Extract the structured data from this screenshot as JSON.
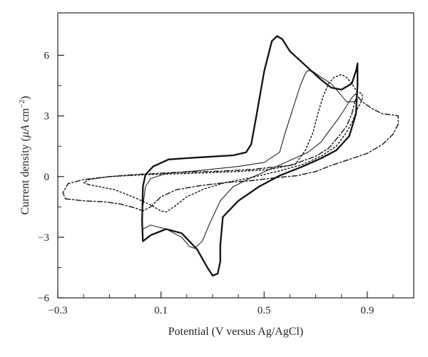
{
  "chart_data": {
    "type": "line",
    "title": "",
    "xlabel": "Potential (V versus Ag/AgCl)",
    "ylabel_parts": [
      "Current density (",
      "μA",
      " cm",
      "−2",
      ")"
    ],
    "xlim": [
      -0.3,
      1.08
    ],
    "ylim": [
      -6,
      8.1
    ],
    "x_ticks": [
      -0.3,
      0.1,
      0.5,
      0.9
    ],
    "x_tick_labels": [
      "−0.3",
      "0.1",
      "0.5",
      "0.9"
    ],
    "x_minor_ticks": [
      -0.2,
      -0.1,
      0,
      0.2,
      0.3,
      0.4,
      0.6,
      0.7,
      0.8,
      1.0
    ],
    "y_ticks": [
      -6,
      -3,
      0,
      3,
      6
    ],
    "y_tick_labels": [
      "−6",
      "−3",
      "0",
      "3",
      "6"
    ],
    "y_minor_ticks": [
      -4.5,
      -1.5,
      1.5,
      4.5
    ],
    "grid": false,
    "series": [
      {
        "style": "solid-thick",
        "color": "#111111",
        "points": [
          [
            0.33,
            -3.4
          ],
          [
            0.34,
            -2.0
          ],
          [
            0.4,
            -1.2
          ],
          [
            0.48,
            -0.5
          ],
          [
            0.56,
            0.05
          ],
          [
            0.65,
            0.5
          ],
          [
            0.72,
            0.9
          ],
          [
            0.78,
            1.3
          ],
          [
            0.83,
            2.0
          ],
          [
            0.856,
            3.1
          ],
          [
            0.862,
            4.5
          ],
          [
            0.862,
            5.6
          ],
          [
            0.858,
            5.3
          ],
          [
            0.84,
            4.6
          ],
          [
            0.8,
            4.3
          ],
          [
            0.76,
            4.4
          ],
          [
            0.72,
            4.8
          ],
          [
            0.66,
            5.5
          ],
          [
            0.6,
            6.2
          ],
          [
            0.57,
            6.8
          ],
          [
            0.55,
            6.95
          ],
          [
            0.53,
            6.7
          ],
          [
            0.5,
            5.2
          ],
          [
            0.47,
            3.0
          ],
          [
            0.45,
            1.6
          ],
          [
            0.43,
            1.2
          ],
          [
            0.38,
            1.05
          ],
          [
            0.25,
            0.95
          ],
          [
            0.13,
            0.85
          ],
          [
            0.07,
            0.5
          ],
          [
            0.04,
            0.1
          ],
          [
            0.03,
            -0.5
          ],
          [
            0.027,
            -2.2
          ],
          [
            0.03,
            -3.2
          ],
          [
            0.06,
            -2.9
          ],
          [
            0.12,
            -2.6
          ],
          [
            0.18,
            -2.8
          ],
          [
            0.24,
            -3.6
          ],
          [
            0.28,
            -4.5
          ],
          [
            0.3,
            -4.9
          ],
          [
            0.32,
            -4.8
          ],
          [
            0.33,
            -4.2
          ],
          [
            0.33,
            -3.4
          ]
        ]
      },
      {
        "style": "solid-thin",
        "color": "#222222",
        "points": [
          [
            0.03,
            -2.6
          ],
          [
            0.06,
            -2.4
          ],
          [
            0.12,
            -2.6
          ],
          [
            0.18,
            -3.0
          ],
          [
            0.21,
            -3.45
          ],
          [
            0.23,
            -3.55
          ],
          [
            0.26,
            -3.2
          ],
          [
            0.29,
            -2.3
          ],
          [
            0.33,
            -1.2
          ],
          [
            0.38,
            -0.5
          ],
          [
            0.45,
            -0.05
          ],
          [
            0.53,
            0.4
          ],
          [
            0.6,
            0.8
          ],
          [
            0.67,
            1.2
          ],
          [
            0.72,
            1.7
          ],
          [
            0.76,
            2.4
          ],
          [
            0.79,
            2.9
          ],
          [
            0.82,
            3.5
          ],
          [
            0.84,
            3.9
          ],
          [
            0.855,
            4.1
          ],
          [
            0.86,
            3.9
          ],
          [
            0.85,
            3.7
          ],
          [
            0.82,
            3.7
          ],
          [
            0.8,
            4.0
          ],
          [
            0.76,
            4.6
          ],
          [
            0.71,
            5.0
          ],
          [
            0.69,
            5.2
          ],
          [
            0.67,
            5.25
          ],
          [
            0.66,
            5.1
          ],
          [
            0.64,
            4.5
          ],
          [
            0.61,
            3.3
          ],
          [
            0.58,
            2.1
          ],
          [
            0.56,
            1.2
          ],
          [
            0.5,
            0.7
          ],
          [
            0.4,
            0.5
          ],
          [
            0.25,
            0.3
          ],
          [
            0.12,
            0.15
          ],
          [
            0.06,
            -0.1
          ],
          [
            0.04,
            -0.5
          ],
          [
            0.03,
            -1.5
          ]
        ]
      },
      {
        "style": "dotted",
        "color": "#111111",
        "points": [
          [
            -0.18,
            -0.4
          ],
          [
            -0.08,
            -0.65
          ],
          [
            0.0,
            -1.05
          ],
          [
            0.06,
            -1.4
          ],
          [
            0.1,
            -1.7
          ],
          [
            0.12,
            -1.75
          ],
          [
            0.15,
            -1.5
          ],
          [
            0.2,
            -1.0
          ],
          [
            0.27,
            -0.6
          ],
          [
            0.35,
            -0.3
          ],
          [
            0.45,
            -0.05
          ],
          [
            0.55,
            0.25
          ],
          [
            0.65,
            0.6
          ],
          [
            0.72,
            1.0
          ],
          [
            0.78,
            1.5
          ],
          [
            0.82,
            2.2
          ],
          [
            0.845,
            2.8
          ],
          [
            0.86,
            3.3
          ],
          [
            0.88,
            3.8
          ],
          [
            0.88,
            4.1
          ],
          [
            0.86,
            4.2
          ],
          [
            0.84,
            4.6
          ],
          [
            0.82,
            4.9
          ],
          [
            0.8,
            5.05
          ],
          [
            0.77,
            4.9
          ],
          [
            0.75,
            4.6
          ],
          [
            0.73,
            4.0
          ],
          [
            0.71,
            3.2
          ],
          [
            0.69,
            2.2
          ],
          [
            0.66,
            1.3
          ],
          [
            0.62,
            0.6
          ],
          [
            0.52,
            0.35
          ],
          [
            0.4,
            0.25
          ],
          [
            0.2,
            0.15
          ],
          [
            0.05,
            0.1
          ],
          [
            -0.1,
            0.0
          ],
          [
            -0.18,
            -0.15
          ],
          [
            -0.2,
            -0.3
          ],
          [
            -0.18,
            -0.4
          ]
        ]
      },
      {
        "style": "dash-dot",
        "color": "#111111",
        "points": [
          [
            -0.27,
            -1.1
          ],
          [
            -0.2,
            -1.2
          ],
          [
            -0.12,
            -1.25
          ],
          [
            -0.06,
            -1.35
          ],
          [
            0.0,
            -1.55
          ],
          [
            0.03,
            -1.7
          ],
          [
            0.06,
            -1.5
          ],
          [
            0.1,
            -1.0
          ],
          [
            0.16,
            -0.65
          ],
          [
            0.25,
            -0.45
          ],
          [
            0.35,
            -0.3
          ],
          [
            0.45,
            -0.2
          ],
          [
            0.55,
            -0.05
          ],
          [
            0.63,
            0.05
          ],
          [
            0.7,
            0.25
          ],
          [
            0.76,
            0.55
          ],
          [
            0.83,
            0.85
          ],
          [
            0.9,
            1.15
          ],
          [
            0.96,
            1.6
          ],
          [
            1.0,
            2.1
          ],
          [
            1.02,
            2.6
          ],
          [
            1.02,
            3.0
          ],
          [
            1.0,
            3.05
          ],
          [
            0.96,
            3.1
          ],
          [
            0.92,
            3.35
          ],
          [
            0.88,
            3.7
          ],
          [
            0.86,
            4.0
          ],
          [
            0.85,
            3.6
          ],
          [
            0.84,
            3.1
          ],
          [
            0.82,
            2.5
          ],
          [
            0.79,
            2.0
          ],
          [
            0.75,
            1.4
          ],
          [
            0.7,
            1.0
          ],
          [
            0.6,
            0.55
          ],
          [
            0.45,
            0.35
          ],
          [
            0.3,
            0.25
          ],
          [
            0.15,
            0.2
          ],
          [
            0.0,
            0.1
          ],
          [
            -0.1,
            0.0
          ],
          [
            -0.2,
            -0.15
          ],
          [
            -0.26,
            -0.35
          ],
          [
            -0.28,
            -0.8
          ],
          [
            -0.27,
            -1.1
          ]
        ]
      }
    ]
  }
}
